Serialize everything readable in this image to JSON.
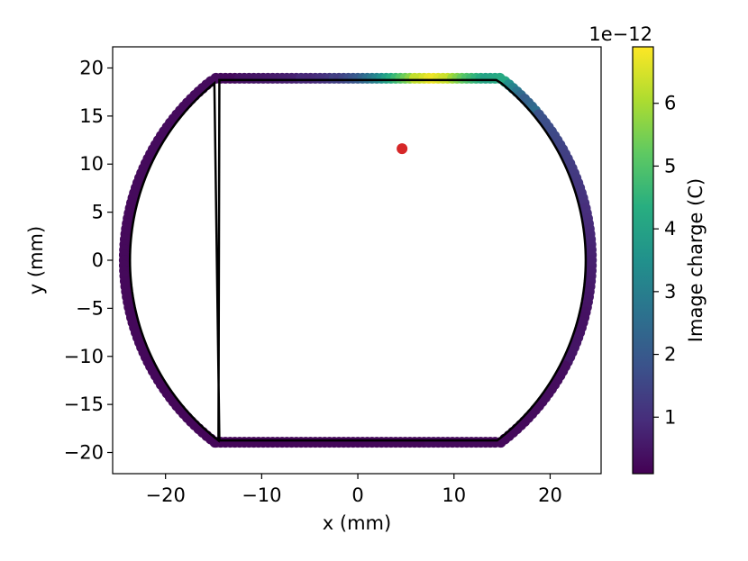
{
  "chart_data": {
    "type": "scatter",
    "xlabel": "x (mm)",
    "ylabel": "y (mm)",
    "xlim": [
      -25.5,
      25.3
    ],
    "ylim": [
      -22.2,
      22.2
    ],
    "xticks": [
      -20,
      -10,
      0,
      10,
      20
    ],
    "xtick_labels": [
      "−20",
      "−10",
      "0",
      "10",
      "20"
    ],
    "yticks": [
      -20,
      -15,
      -10,
      -5,
      0,
      5,
      10,
      15,
      20
    ],
    "ytick_labels": [
      "−20",
      "−15",
      "−10",
      "−5",
      "0",
      "5",
      "10",
      "15",
      "20"
    ],
    "grid": false,
    "boundary": {
      "description_free": true,
      "arc_radius": 23.7,
      "flat_y": 18.75,
      "corner_x": 14.4
    },
    "charge_segments": [
      {
        "x": -14.4,
        "y": 18.75,
        "charge": 0.3
      },
      {
        "x": -10,
        "y": 18.75,
        "charge": 0.5
      },
      {
        "x": -5,
        "y": 18.75,
        "charge": 0.8
      },
      {
        "x": -2,
        "y": 18.75,
        "charge": 1.3
      },
      {
        "x": 0,
        "y": 18.75,
        "charge": 2.0
      },
      {
        "x": 2,
        "y": 18.75,
        "charge": 3.2
      },
      {
        "x": 4,
        "y": 18.75,
        "charge": 4.8
      },
      {
        "x": 6,
        "y": 18.75,
        "charge": 6.2
      },
      {
        "x": 7.5,
        "y": 18.75,
        "charge": 6.8
      },
      {
        "x": 9,
        "y": 18.75,
        "charge": 6.3
      },
      {
        "x": 11,
        "y": 18.75,
        "charge": 5.0
      },
      {
        "x": 13,
        "y": 18.75,
        "charge": 4.0
      },
      {
        "x": 14.4,
        "y": 18.75,
        "charge": 4.2
      },
      {
        "x": 17,
        "y": 16.5,
        "charge": 2.0
      },
      {
        "x": 21,
        "y": 11,
        "charge": 1.4
      },
      {
        "x": 23,
        "y": 5,
        "charge": 1.0
      },
      {
        "x": 23.7,
        "y": 0,
        "charge": 0.7
      },
      {
        "x": 23,
        "y": -6,
        "charge": 0.4
      },
      {
        "x": 14.4,
        "y": -18.75,
        "charge": 0.25
      },
      {
        "x": -14.4,
        "y": -18.75,
        "charge": 0.2
      },
      {
        "x": -23.7,
        "y": 0,
        "charge": 0.25
      },
      {
        "x": -14.4,
        "y": 18.75,
        "charge": 0.3
      }
    ],
    "source_point": {
      "x": 4.6,
      "y": 11.6,
      "color": "#d62728"
    },
    "colorbar": {
      "label": "Image charge (C)",
      "offset_text": "1e−12",
      "min": 0.1,
      "max": 6.9,
      "ticks": [
        1,
        2,
        3,
        4,
        5,
        6
      ],
      "tick_labels": [
        "1",
        "2",
        "3",
        "4",
        "5",
        "6"
      ],
      "colormap": "viridis"
    }
  }
}
